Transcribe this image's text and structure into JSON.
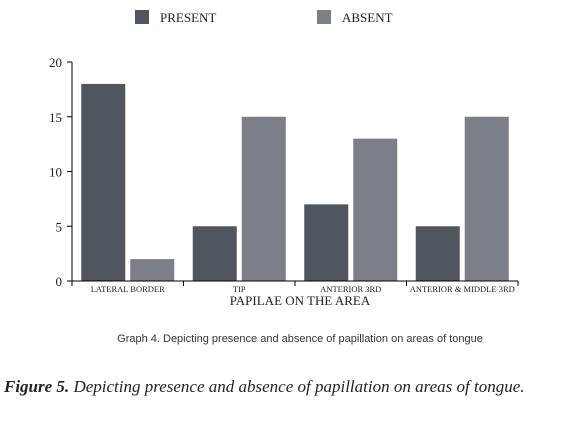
{
  "chart_data": {
    "type": "bar",
    "categories": [
      "LATERAL BORDER",
      "TIP",
      "ANTERIOR 3RD",
      "ANTERIOR & MIDDLE 3RD"
    ],
    "series": [
      {
        "name": "PRESENT",
        "values": [
          18,
          5,
          7,
          5
        ]
      },
      {
        "name": "ABSENT",
        "values": [
          2,
          15,
          13,
          15
        ]
      }
    ],
    "xlabel": "PAPILAE ON THE AREA",
    "ylabel": "",
    "ylim": [
      0,
      20
    ],
    "yticks": [
      0,
      5,
      10,
      15,
      20
    ],
    "grid": false,
    "legend_position": "top-center",
    "colors": {
      "PRESENT": "#50565e",
      "ABSENT": "#7b7f87"
    }
  },
  "graph_caption": "Graph 4. Depicting presence and absence of papillation on areas of tongue",
  "figure_caption": {
    "label": "Figure 5.",
    "text": " Depicting presence and absence of papillation on areas of tongue."
  }
}
